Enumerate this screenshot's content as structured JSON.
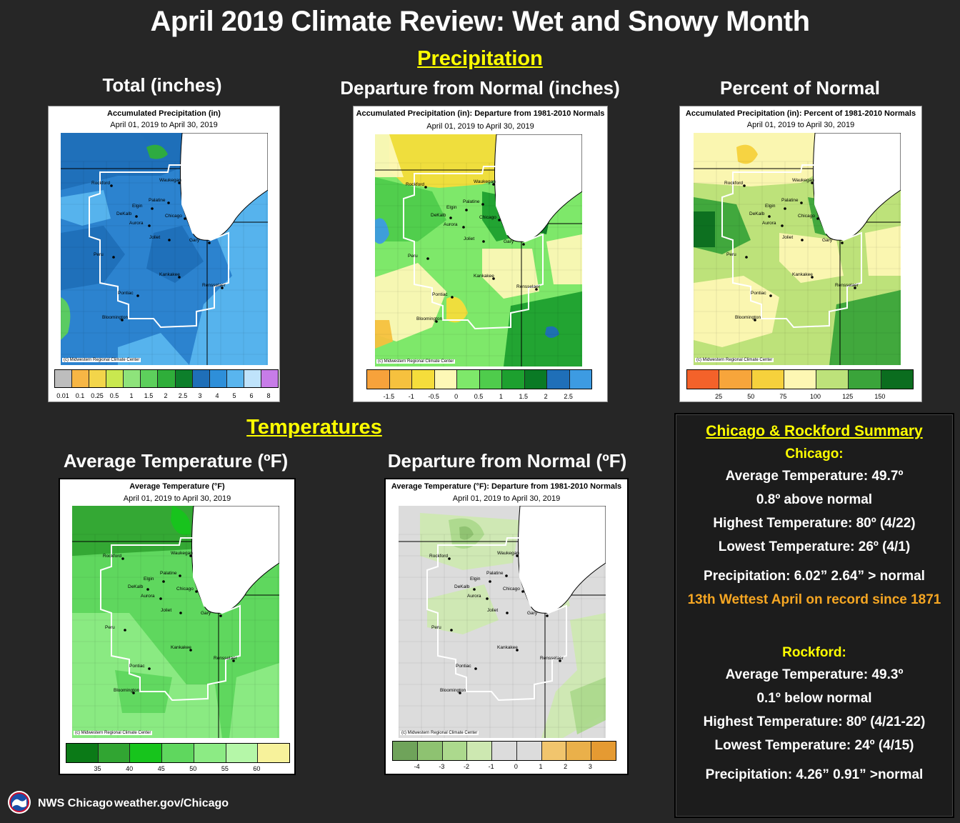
{
  "title": "April 2019 Climate Review: Wet and Snowy Month",
  "precip_heading": "Precipitation",
  "temp_heading": "Temperatures",
  "panels": {
    "precip_total": {
      "heading": "Total (inches)",
      "map_title": "Accumulated Precipitation (in)",
      "map_dates": "April 01, 2019 to April 30, 2019",
      "credit": "(c) Midwestern Regional Climate Center",
      "legend_colors": [
        "#bdbdbd",
        "#f7b645",
        "#f3d54a",
        "#c9e84f",
        "#8ee37b",
        "#5dcf5c",
        "#2fae3a",
        "#0d7f2b",
        "#1f6fb8",
        "#2e8fd9",
        "#59b5ee",
        "#bfe3fb",
        "#c77ce8"
      ],
      "legend_ticks": [
        "0.01",
        "0.1",
        "0.25",
        "0.5",
        "1",
        "1.5",
        "2",
        "2.5",
        "3",
        "4",
        "5",
        "6",
        "8"
      ]
    },
    "precip_departure": {
      "heading": "Departure from Normal (inches)",
      "map_title": "Accumulated Precipitation (in): Departure from 1981-2010 Normals",
      "map_dates": "April 01, 2019 to April 30, 2019",
      "credit": "(c) Midwestern Regional Climate Center",
      "legend_colors": [
        "#f7a23b",
        "#f6c13e",
        "#f5dd3b",
        "#fdf8b6",
        "#7ee86a",
        "#4fcc4c",
        "#1da02f",
        "#0a7a25",
        "#1f6fb8",
        "#3d9be2"
      ],
      "legend_ticks": [
        "-1.5",
        "-1",
        "-0.5",
        "0",
        "0.5",
        "1",
        "1.5",
        "2",
        "2.5"
      ]
    },
    "precip_percent": {
      "heading": "Percent of Normal",
      "map_title": "Accumulated Precipitation (in): Percent of 1981-2010 Normals",
      "map_dates": "April 01, 2019 to April 30, 2019",
      "credit": "(c) Midwestern Regional Climate Center",
      "legend_colors": [
        "#f4622a",
        "#f7a53b",
        "#f6d13c",
        "#fdf7b3",
        "#bde27a",
        "#3aa43a",
        "#0b6d1f"
      ],
      "legend_ticks": [
        "25",
        "50",
        "75",
        "100",
        "125",
        "150"
      ]
    },
    "temp_avg": {
      "heading": "Average Temperature (ºF)",
      "map_title": "Average Temperature (°F)",
      "map_dates": "April 01, 2019 to April 30, 2019",
      "credit": "(c) Midwestern Regional Climate Center",
      "legend_colors": [
        "#0b7a17",
        "#31a532",
        "#17c41c",
        "#5fd75e",
        "#8ceb84",
        "#b5f7a8",
        "#f7f29b"
      ],
      "legend_ticks": [
        "35",
        "40",
        "45",
        "50",
        "55",
        "60"
      ]
    },
    "temp_departure": {
      "heading": "Departure from Normal (ºF)",
      "map_title": "Average Temperature (°F): Departure from 1981-2010 Normals",
      "map_dates": "April 01, 2019 to April 30, 2019",
      "credit": "(c) Midwestern Regional Climate Center",
      "legend_colors": [
        "#6fa35a",
        "#8ec271",
        "#acd98d",
        "#cde8b1",
        "#dcdcdc",
        "#dcdcdc",
        "#f1c56d",
        "#eab04a",
        "#e59a32"
      ],
      "legend_ticks": [
        "-4",
        "-3",
        "-2",
        "-1",
        "0",
        "1",
        "2",
        "3"
      ]
    }
  },
  "cities": [
    "Rockford",
    "Waukegan",
    "Palatine",
    "Elgin",
    "DeKalb",
    "Chicago",
    "Aurora",
    "Joliet",
    "Gary",
    "Peru",
    "Kankakee",
    "Rensselaer",
    "Pontiac",
    "Bloomington"
  ],
  "summary": {
    "heading": "Chicago & Rockford Summary",
    "chicago": {
      "label": "Chicago:",
      "avg": "Average Temperature:  49.7º",
      "dep": "0.8º above normal",
      "high": "Highest Temperature:  80º (4/22)",
      "low": "Lowest Temperature:  26º (4/1)",
      "precip": "Precipitation:  6.02”  2.64” > normal",
      "note": "13th Wettest April on record since 1871"
    },
    "rockford": {
      "label": "Rockford:",
      "avg": "Average Temperature:  49.3º",
      "dep": "0.1º below normal",
      "high": "Highest Temperature:  80º (4/21-22)",
      "low": "Lowest Temperature:  24º (4/15)",
      "precip": "Precipitation: 4.26”  0.91” >normal"
    }
  },
  "footer": {
    "office": "NWS Chicago",
    "url": "weather.gov/Chicago"
  }
}
